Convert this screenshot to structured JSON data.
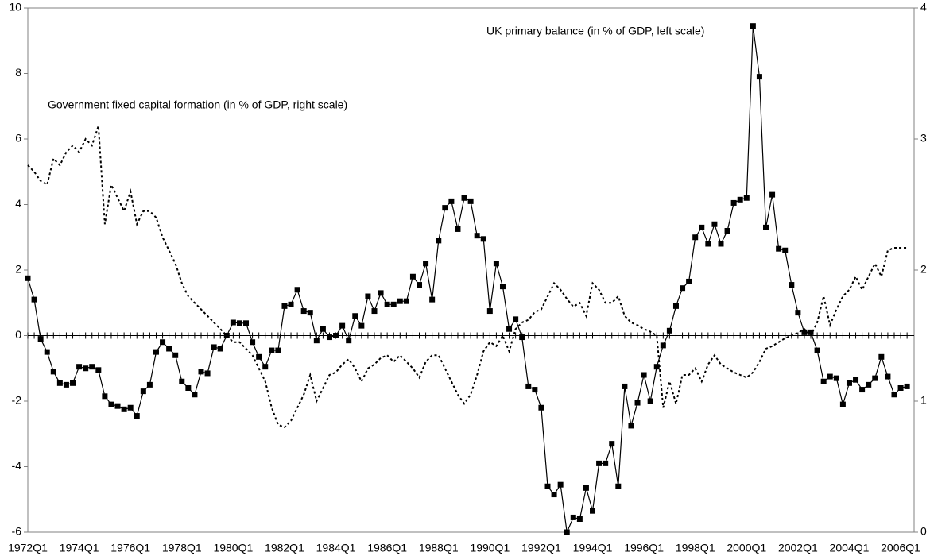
{
  "chart_data": {
    "type": "line",
    "categories": [
      "1972Q1",
      null,
      null,
      null,
      null,
      null,
      null,
      null,
      "1974Q1",
      null,
      null,
      null,
      null,
      null,
      null,
      null,
      "1976Q1",
      null,
      null,
      null,
      null,
      null,
      null,
      null,
      "1978Q1",
      null,
      null,
      null,
      null,
      null,
      null,
      null,
      "1980Q1",
      null,
      null,
      null,
      null,
      null,
      null,
      null,
      "1982Q1",
      null,
      null,
      null,
      null,
      null,
      null,
      null,
      "1984Q1",
      null,
      null,
      null,
      null,
      null,
      null,
      null,
      "1986Q1",
      null,
      null,
      null,
      null,
      null,
      null,
      null,
      "1988Q1",
      null,
      null,
      null,
      null,
      null,
      null,
      null,
      "1990Q1",
      null,
      null,
      null,
      null,
      null,
      null,
      null,
      "1992Q1",
      null,
      null,
      null,
      null,
      null,
      null,
      null,
      "1994Q1",
      null,
      null,
      null,
      null,
      null,
      null,
      null,
      "1996Q1",
      null,
      null,
      null,
      null,
      null,
      null,
      null,
      "1998Q1",
      null,
      null,
      null,
      null,
      null,
      null,
      null,
      "2000Q1",
      null,
      null,
      null,
      null,
      null,
      null,
      null,
      "2002Q1",
      null,
      null,
      null,
      null,
      null,
      null,
      null,
      "2004Q1",
      null,
      null,
      null,
      null,
      null,
      null,
      null,
      "2006Q1",
      null
    ],
    "series": [
      {
        "name": "UK primary balance (in % of GDP, left scale)",
        "color": "#000000",
        "line_style": "solid",
        "marker": "square",
        "values": [
          1.75,
          1.1,
          -0.1,
          -0.5,
          -1.1,
          -1.45,
          -1.5,
          -1.45,
          -0.95,
          -1.0,
          -0.95,
          -1.05,
          -1.85,
          -2.1,
          -2.15,
          -2.25,
          -2.2,
          -2.45,
          -1.7,
          -1.5,
          -0.5,
          -0.2,
          -0.4,
          -0.6,
          -1.4,
          -1.6,
          -1.8,
          -1.1,
          -1.15,
          -0.35,
          -0.4,
          0,
          0.4,
          0.38,
          0.38,
          -0.2,
          -0.65,
          -0.95,
          -0.45,
          -0.45,
          0.9,
          0.95,
          1.4,
          0.75,
          0.7,
          -0.15,
          0.2,
          -0.05,
          0,
          0.3,
          -0.15,
          0.6,
          0.3,
          1.2,
          0.75,
          1.3,
          0.95,
          0.95,
          1.05,
          1.05,
          1.8,
          1.55,
          2.2,
          1.1,
          2.9,
          3.9,
          4.1,
          3.25,
          4.2,
          4.1,
          3.05,
          2.95,
          0.75,
          2.2,
          1.5,
          0.2,
          0.5,
          -0.05,
          -1.55,
          -1.65,
          -2.2,
          -4.6,
          -4.85,
          -4.55,
          -6,
          -5.55,
          -5.6,
          -4.65,
          -5.35,
          -3.9,
          -3.9,
          -3.3,
          -4.6,
          -1.55,
          -2.75,
          -2.05,
          -1.2,
          -2.0,
          -0.95,
          -0.3,
          0.15,
          0.9,
          1.45,
          1.65,
          3.0,
          3.3,
          2.8,
          3.4,
          2.8,
          3.2,
          4.05,
          4.15,
          4.2,
          9.45,
          7.9,
          3.3,
          4.3,
          2.65,
          2.6,
          1.55,
          0.7,
          0.1,
          0.1,
          -0.45,
          -1.4,
          -1.25,
          -1.3,
          -2.1,
          -1.45,
          -1.35,
          -1.65,
          -1.5,
          -1.3,
          -0.65,
          -1.25,
          -1.8,
          -1.6,
          -1.55
        ]
      },
      {
        "name": "Government fixed capital formation (in % of GDP, right scale)",
        "color": "#000000",
        "line_style": "dotted",
        "marker": "none",
        "axis": "y2",
        "values": [
          2.8,
          2.75,
          2.68,
          2.65,
          2.85,
          2.8,
          2.9,
          2.95,
          2.9,
          3.0,
          2.95,
          3.1,
          2.35,
          2.65,
          2.55,
          2.45,
          2.6,
          2.35,
          2.45,
          2.45,
          2.4,
          2.25,
          2.15,
          2.05,
          1.9,
          1.8,
          1.75,
          1.7,
          1.65,
          1.6,
          1.55,
          1.5,
          1.45,
          1.45,
          1.4,
          1.35,
          1.25,
          1.15,
          0.95,
          0.82,
          0.8,
          0.85,
          0.95,
          1.05,
          1.2,
          1.0,
          1.1,
          1.2,
          1.22,
          1.28,
          1.32,
          1.25,
          1.15,
          1.25,
          1.28,
          1.33,
          1.35,
          1.3,
          1.35,
          1.3,
          1.25,
          1.18,
          1.3,
          1.35,
          1.35,
          1.25,
          1.15,
          1.05,
          0.98,
          1.05,
          1.2,
          1.38,
          1.45,
          1.42,
          1.5,
          1.38,
          1.55,
          1.6,
          1.62,
          1.68,
          1.7,
          1.8,
          1.9,
          1.85,
          1.78,
          1.72,
          1.75,
          1.65,
          1.9,
          1.85,
          1.75,
          1.75,
          1.8,
          1.65,
          1.6,
          1.58,
          1.55,
          1.53,
          1.5,
          0.95,
          1.15,
          0.98,
          1.2,
          1.2,
          1.25,
          1.15,
          1.28,
          1.35,
          1.28,
          1.25,
          1.22,
          1.2,
          1.18,
          1.22,
          1.3,
          1.4,
          1.42,
          1.45,
          1.48,
          1.5,
          1.52,
          1.55,
          1.5,
          1.6,
          1.8,
          1.58,
          1.7,
          1.8,
          1.85,
          1.95,
          1.85,
          1.95,
          2.05,
          1.95,
          2.15,
          2.17,
          2.17,
          2.17
        ]
      }
    ],
    "ylim": [
      -6,
      10
    ],
    "yticks": [
      -6,
      -4,
      -2,
      0,
      2,
      4,
      6,
      8,
      10
    ],
    "y2lim": [
      0,
      4
    ],
    "y2ticks": [
      0,
      1,
      2,
      3,
      4
    ],
    "grid": false
  }
}
